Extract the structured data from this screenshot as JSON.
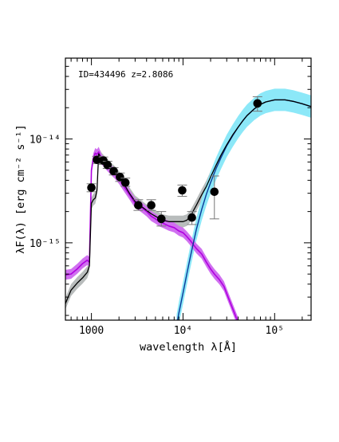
{
  "chart_data": {
    "type": "line",
    "title": "",
    "annotation": "ID=434496 z=2.8086",
    "xlabel": "wavelength λ[Å]",
    "ylabel": "λF(λ) [erg cm⁻² s⁻¹]",
    "xscale": "log",
    "yscale": "log",
    "xlim": [
      520,
      250000
    ],
    "ylim": [
      1.8e-16,
      6e-14
    ],
    "x_ticks": [
      {
        "value": 1000,
        "label": "1000"
      },
      {
        "value": 10000,
        "label": "10⁴"
      },
      {
        "value": 100000,
        "label": "10⁵"
      }
    ],
    "y_ticks": [
      {
        "value": 1e-15,
        "label": "10⁻¹⁵"
      },
      {
        "value": 1e-14,
        "label": "10⁻¹⁴"
      }
    ],
    "grid": false,
    "legend": "none",
    "colors": {
      "total_model": "#000000",
      "stellar": "#b000e0",
      "stellar_band": "#d070f0",
      "dust": "#0a3a9a",
      "dust_band": "#8ce8f8",
      "total_band": "#b8bcbc",
      "points": "#000000",
      "errorbars": "#777777"
    },
    "photometry": [
      {
        "x": 1000,
        "y": 3.4e-15,
        "yerr_lo": 3.1e-15,
        "yerr_hi": 3.7e-15
      },
      {
        "x": 1150,
        "y": 6.3e-15,
        "yerr_lo": 5.8e-15,
        "yerr_hi": 6.8e-15
      },
      {
        "x": 1350,
        "y": 6.2e-15,
        "yerr_lo": 5.7e-15,
        "yerr_hi": 6.7e-15
      },
      {
        "x": 1500,
        "y": 5.6e-15,
        "yerr_lo": 5.2e-15,
        "yerr_hi": 6.1e-15
      },
      {
        "x": 1750,
        "y": 4.9e-15,
        "yerr_lo": 4.5e-15,
        "yerr_hi": 5.3e-15
      },
      {
        "x": 2050,
        "y": 4.3e-15,
        "yerr_lo": 3.9e-15,
        "yerr_hi": 4.7e-15
      },
      {
        "x": 2350,
        "y": 3.8e-15,
        "yerr_lo": 3.5e-15,
        "yerr_hi": 4.2e-15
      },
      {
        "x": 3250,
        "y": 2.3e-15,
        "yerr_lo": 2.05e-15,
        "yerr_hi": 2.6e-15
      },
      {
        "x": 4500,
        "y": 2.3e-15,
        "yerr_lo": 2.05e-15,
        "yerr_hi": 2.6e-15
      },
      {
        "x": 5800,
        "y": 1.7e-15,
        "yerr_lo": 1.45e-15,
        "yerr_hi": 2e-15
      },
      {
        "x": 9800,
        "y": 3.2e-15,
        "yerr_lo": 2.8e-15,
        "yerr_hi": 3.6e-15
      },
      {
        "x": 12500,
        "y": 1.75e-15,
        "yerr_lo": 1.5e-15,
        "yerr_hi": 2e-15
      },
      {
        "x": 22000,
        "y": 3.1e-15,
        "yerr_lo": 1.7e-15,
        "yerr_hi": 4.4e-15
      },
      {
        "x": 65000,
        "y": 2.2e-14,
        "yerr_lo": 1.85e-14,
        "yerr_hi": 2.55e-14
      }
    ],
    "series": [
      {
        "key": "stellar",
        "x": [
          520,
          600,
          700,
          800,
          900,
          950,
          1000,
          1050,
          1100,
          1150,
          1200,
          1300,
          1400,
          1600,
          1800,
          2000,
          2300,
          2600,
          3000,
          3500,
          4000,
          4500,
          5000,
          5500,
          6000,
          7000,
          8000,
          9000,
          10000,
          11000,
          12000,
          13000,
          14000,
          16000,
          18000,
          20000,
          22000,
          25000,
          28000,
          32000,
          35000,
          40000
        ],
        "y": [
          4.9e-16,
          5e-16,
          5.6e-16,
          6.3e-16,
          6.8e-16,
          6.5e-16,
          5e-15,
          6.5e-15,
          7.3e-15,
          7.1e-15,
          7.5e-15,
          6.3e-15,
          5.8e-15,
          5.1e-15,
          4.6e-15,
          4.1e-15,
          3.4e-15,
          2.9e-15,
          2.4e-15,
          2.2e-15,
          2e-15,
          1.8e-15,
          1.7e-15,
          1.6e-15,
          1.55e-15,
          1.45e-15,
          1.4e-15,
          1.3e-15,
          1.25e-15,
          1.15e-15,
          1.05e-15,
          9.6e-16,
          8.8e-16,
          7.8e-16,
          6.5e-16,
          5.6e-16,
          5e-16,
          4.4e-16,
          3.8e-16,
          2.8e-16,
          2.3e-16,
          1.7e-16
        ]
      },
      {
        "key": "dust",
        "x": [
          8500,
          9000,
          10000,
          11000,
          12000,
          14000,
          16000,
          18000,
          20000,
          23000,
          26000,
          30000,
          35000,
          40000,
          45000,
          50000,
          60000,
          70000,
          80000,
          100000,
          130000,
          160000,
          200000,
          250000
        ],
        "y": [
          1.6e-16,
          2.1e-16,
          3.3e-16,
          5e-16,
          7.3e-16,
          1.35e-15,
          2.1e-15,
          2.95e-15,
          3.8e-15,
          5.2e-15,
          6.6e-15,
          8.6e-15,
          1.08e-14,
          1.3e-14,
          1.5e-14,
          1.68e-14,
          1.95e-14,
          2.15e-14,
          2.27e-14,
          2.38e-14,
          2.38e-14,
          2.3e-14,
          2.18e-14,
          2.05e-14
        ]
      },
      {
        "key": "total",
        "x": [
          520,
          600,
          700,
          800,
          900,
          950,
          1000,
          1050,
          1100,
          1150,
          1200,
          1300,
          1400,
          1600,
          1800,
          2000,
          2300,
          2600,
          3000,
          3500,
          4000,
          4500,
          5000,
          5500,
          6000,
          7000,
          8000,
          9000,
          10000,
          11000,
          12000,
          14000,
          16000,
          18000,
          20000,
          23000,
          26000,
          30000,
          35000,
          40000,
          45000,
          50000,
          60000,
          70000,
          80000,
          100000,
          130000,
          160000,
          200000,
          250000
        ],
        "y": [
          2.6e-16,
          3.5e-16,
          4.1e-16,
          4.6e-16,
          5.2e-16,
          6e-16,
          2.4e-15,
          2.6e-15,
          2.7e-15,
          3.2e-15,
          7.2e-15,
          6.4e-15,
          6e-15,
          5.3e-15,
          4.8e-15,
          4.3e-15,
          3.6e-15,
          3e-15,
          2.5e-15,
          2.25e-15,
          2.05e-15,
          1.9e-15,
          1.8e-15,
          1.72e-15,
          1.65e-15,
          1.6e-15,
          1.6e-15,
          1.6e-15,
          1.6e-15,
          1.65e-15,
          1.8e-15,
          2.3e-15,
          2.9e-15,
          3.5e-15,
          4.3e-15,
          5.6e-15,
          7e-15,
          8.8e-15,
          1.1e-14,
          1.3e-14,
          1.5e-14,
          1.68e-14,
          1.95e-14,
          2.15e-14,
          2.27e-14,
          2.38e-14,
          2.38e-14,
          2.3e-14,
          2.18e-14,
          2.05e-14
        ]
      }
    ]
  }
}
